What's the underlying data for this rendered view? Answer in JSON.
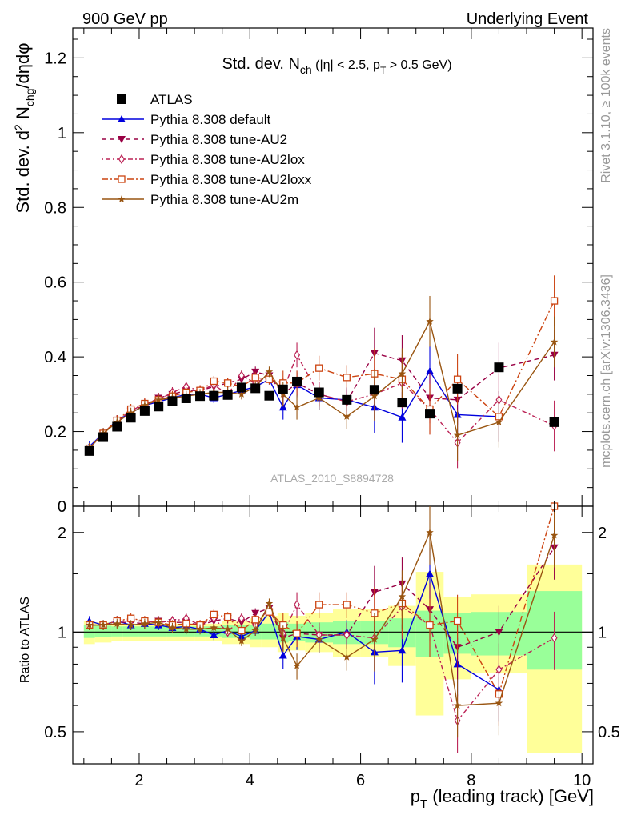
{
  "header": {
    "left": "900 GeV pp",
    "right": "Underlying Event"
  },
  "side_labels": {
    "rivet": "Rivet 3.1.10, ≥ 100k events",
    "mcplots": "mcplots.cern.ch [arXiv:1306.3436]"
  },
  "chart_data": [
    {
      "type": "scatter",
      "title": "Std. dev. N_ch (|η| < 2.5, p_T > 0.5 GeV)",
      "title_parts": {
        "pre": "Std. dev. N",
        "sub1": "ch",
        "mid": " (|η| < 2.5, p",
        "sub2": "T",
        "post": " > 0.5 GeV)"
      },
      "ylabel": "Std. dev. d² N_chg/dηdφ",
      "ylabel_parts": {
        "pre": "Std. dev. d",
        "sup": "2",
        "mid": " N",
        "sub": "chg",
        "post": "/dηdφ"
      },
      "analysis_label": "ATLAS_2010_S8894728",
      "xlim": [
        0.8,
        10.2
      ],
      "ylim": [
        0,
        1.28
      ],
      "yticks": [
        0,
        0.2,
        0.4,
        0.6,
        0.8,
        1,
        1.2
      ],
      "ytick_labels": [
        "0",
        "0.2",
        "0.4",
        "0.6",
        "0.8",
        "1",
        "1.2"
      ],
      "legend_position": "top-left",
      "data": {
        "x": [
          1.1,
          1.35,
          1.6,
          1.85,
          2.1,
          2.35,
          2.6,
          2.85,
          3.1,
          3.35,
          3.6,
          3.85,
          4.1,
          4.35,
          4.6,
          4.85,
          5.25,
          5.75,
          6.25,
          6.75,
          7.25,
          7.75,
          8.5,
          9.5
        ],
        "y": [
          0.148,
          0.185,
          0.213,
          0.237,
          0.255,
          0.267,
          0.282,
          0.289,
          0.295,
          0.296,
          0.298,
          0.318,
          0.316,
          0.296,
          0.313,
          0.334,
          0.305,
          0.285,
          0.312,
          0.278,
          0.248,
          0.315,
          0.372,
          0.225
        ]
      },
      "series": [
        {
          "name": "ATLAS",
          "color": "#000000",
          "marker": "square",
          "x": [
            1.1,
            1.35,
            1.6,
            1.85,
            2.1,
            2.35,
            2.6,
            2.85,
            3.1,
            3.35,
            3.6,
            3.85,
            4.1,
            4.35,
            4.6,
            4.85,
            5.25,
            5.75,
            6.25,
            6.75,
            7.25,
            7.75,
            8.5,
            9.5
          ],
          "values": [
            0.148,
            0.185,
            0.213,
            0.237,
            0.255,
            0.267,
            0.282,
            0.289,
            0.295,
            0.296,
            0.298,
            0.318,
            0.316,
            0.296,
            0.313,
            0.334,
            0.305,
            0.285,
            0.312,
            0.278,
            0.248,
            0.315,
            0.372,
            0.225
          ]
        },
        {
          "name": "Pythia 8.308 default",
          "color": "#0000dd",
          "marker": "triangle-up",
          "line": "solid",
          "x": [
            1.1,
            1.35,
            1.6,
            1.85,
            2.1,
            2.35,
            2.6,
            2.85,
            3.1,
            3.35,
            3.6,
            3.85,
            4.1,
            4.35,
            4.6,
            4.85,
            5.25,
            5.75,
            6.25,
            6.75,
            7.25,
            7.75,
            8.5
          ],
          "values": [
            0.16,
            0.195,
            0.23,
            0.25,
            0.27,
            0.28,
            0.29,
            0.3,
            0.3,
            0.29,
            0.3,
            0.31,
            0.32,
            0.34,
            0.265,
            0.325,
            0.29,
            0.285,
            0.265,
            0.238,
            0.362,
            0.245,
            0.24
          ]
        },
        {
          "name": "Pythia 8.308 tune-AU2",
          "color": "#990044",
          "marker": "triangle-down",
          "line": "dashed",
          "x": [
            1.1,
            1.35,
            1.6,
            1.85,
            2.1,
            2.35,
            2.6,
            2.85,
            3.1,
            3.35,
            3.6,
            3.85,
            4.1,
            4.35,
            4.6,
            4.85,
            5.25,
            5.75,
            6.25,
            6.75,
            7.25,
            7.75,
            8.5,
            9.5
          ],
          "values": [
            0.155,
            0.195,
            0.228,
            0.255,
            0.27,
            0.29,
            0.3,
            0.31,
            0.31,
            0.32,
            0.33,
            0.34,
            0.36,
            0.35,
            0.3,
            0.33,
            0.3,
            0.28,
            0.41,
            0.39,
            0.29,
            0.285,
            0.37,
            0.405
          ]
        },
        {
          "name": "Pythia 8.308 tune-AU2lox",
          "color": "#bb2255",
          "marker": "diamond-open",
          "line": "dotdash",
          "x": [
            1.1,
            1.35,
            1.6,
            1.85,
            2.1,
            2.35,
            2.6,
            2.85,
            3.1,
            3.35,
            3.6,
            3.85,
            4.1,
            4.35,
            4.6,
            4.85,
            5.25,
            5.75,
            6.25,
            6.75,
            7.25,
            7.75,
            8.5,
            9.5
          ],
          "values": [
            0.155,
            0.195,
            0.23,
            0.255,
            0.275,
            0.285,
            0.305,
            0.32,
            0.31,
            0.325,
            0.3,
            0.35,
            0.33,
            0.35,
            0.31,
            0.405,
            0.3,
            0.28,
            0.3,
            0.33,
            0.26,
            0.17,
            0.285,
            0.215
          ]
        },
        {
          "name": "Pythia 8.308 tune-AU2loxx",
          "color": "#cc4411",
          "marker": "square-open",
          "line": "dashdot",
          "x": [
            1.1,
            1.35,
            1.6,
            1.85,
            2.1,
            2.35,
            2.6,
            2.85,
            3.1,
            3.35,
            3.6,
            3.85,
            4.1,
            4.35,
            4.6,
            4.85,
            5.25,
            5.75,
            6.25,
            6.75,
            7.25,
            7.75,
            8.5,
            9.5
          ],
          "values": [
            0.155,
            0.195,
            0.23,
            0.26,
            0.275,
            0.285,
            0.295,
            0.305,
            0.31,
            0.335,
            0.33,
            0.32,
            0.345,
            0.34,
            0.33,
            0.33,
            0.37,
            0.345,
            0.355,
            0.34,
            0.26,
            0.34,
            0.24,
            0.55
          ]
        },
        {
          "name": "Pythia 8.308 tune-AU2m",
          "color": "#995511",
          "marker": "star",
          "line": "solid",
          "x": [
            1.1,
            1.35,
            1.6,
            1.85,
            2.1,
            2.35,
            2.6,
            2.85,
            3.1,
            3.35,
            3.6,
            3.85,
            4.1,
            4.35,
            4.6,
            4.85,
            5.25,
            5.75,
            6.25,
            6.75,
            7.25,
            7.75,
            8.5,
            9.5
          ],
          "values": [
            0.155,
            0.195,
            0.225,
            0.25,
            0.27,
            0.285,
            0.29,
            0.295,
            0.3,
            0.305,
            0.305,
            0.3,
            0.32,
            0.36,
            0.3,
            0.265,
            0.29,
            0.24,
            0.295,
            0.355,
            0.495,
            0.19,
            0.225,
            0.44
          ]
        }
      ]
    },
    {
      "type": "scatter",
      "ylabel": "Ratio to ATLAS",
      "xlabel": "p_T (leading track) [GeV]",
      "xlabel_parts": {
        "pre": "p",
        "sub": "T",
        "post": " (leading track) [GeV]"
      },
      "xlim": [
        0.8,
        10.2
      ],
      "ylim_log": [
        0.4,
        2.4
      ],
      "log_scale_y": true,
      "xticks": [
        2,
        4,
        6,
        8,
        10
      ],
      "xtick_labels": [
        "2",
        "4",
        "6",
        "8",
        "10"
      ],
      "yticks": [
        0.5,
        1,
        2
      ],
      "ytick_labels": [
        "0.5",
        "1",
        "2"
      ],
      "reference_line": 1,
      "band_edges": [
        1.0,
        1.2,
        1.5,
        1.7,
        2.0,
        2.2,
        2.5,
        2.7,
        3.0,
        3.2,
        3.5,
        3.7,
        4.0,
        4.2,
        4.5,
        4.7,
        5.0,
        5.5,
        6.0,
        6.5,
        7.0,
        7.5,
        8.0,
        9.0,
        10.0
      ],
      "band_68": [
        [
          0.96,
          1.05
        ],
        [
          0.965,
          1.045
        ],
        [
          0.97,
          1.04
        ],
        [
          0.97,
          1.04
        ],
        [
          0.97,
          1.04
        ],
        [
          0.97,
          1.04
        ],
        [
          0.97,
          1.04
        ],
        [
          0.97,
          1.04
        ],
        [
          0.97,
          1.04
        ],
        [
          0.97,
          1.04
        ],
        [
          0.96,
          1.05
        ],
        [
          0.96,
          1.05
        ],
        [
          0.95,
          1.05
        ],
        [
          0.95,
          1.06
        ],
        [
          0.93,
          1.07
        ],
        [
          0.94,
          1.06
        ],
        [
          0.93,
          1.07
        ],
        [
          0.92,
          1.08
        ],
        [
          0.92,
          1.08
        ],
        [
          0.9,
          1.1
        ],
        [
          0.84,
          1.16
        ],
        [
          0.86,
          1.14
        ],
        [
          0.85,
          1.15
        ],
        [
          0.77,
          1.33
        ]
      ],
      "band_95": [
        [
          0.92,
          1.08
        ],
        [
          0.93,
          1.07
        ],
        [
          0.94,
          1.06
        ],
        [
          0.94,
          1.06
        ],
        [
          0.94,
          1.06
        ],
        [
          0.94,
          1.06
        ],
        [
          0.94,
          1.06
        ],
        [
          0.94,
          1.06
        ],
        [
          0.94,
          1.06
        ],
        [
          0.94,
          1.06
        ],
        [
          0.92,
          1.08
        ],
        [
          0.92,
          1.08
        ],
        [
          0.9,
          1.1
        ],
        [
          0.9,
          1.12
        ],
        [
          0.87,
          1.14
        ],
        [
          0.88,
          1.12
        ],
        [
          0.87,
          1.14
        ],
        [
          0.84,
          1.17
        ],
        [
          0.84,
          1.17
        ],
        [
          0.79,
          1.2
        ],
        [
          0.56,
          1.52
        ],
        [
          0.72,
          1.28
        ],
        [
          0.75,
          1.3
        ],
        [
          0.43,
          1.6
        ]
      ],
      "series": [
        {
          "name": "Pythia 8.308 default",
          "x": [
            1.1,
            1.35,
            1.6,
            1.85,
            2.1,
            2.35,
            2.6,
            2.85,
            3.1,
            3.35,
            3.6,
            3.85,
            4.1,
            4.35,
            4.6,
            4.85,
            5.25,
            5.75,
            6.25,
            6.75,
            7.25,
            7.75,
            8.5
          ],
          "values": [
            1.08,
            1.05,
            1.08,
            1.05,
            1.06,
            1.05,
            1.03,
            1.04,
            1.02,
            0.98,
            1.01,
            0.97,
            1.01,
            1.15,
            0.85,
            0.97,
            0.95,
            1.0,
            0.87,
            0.88,
            1.5,
            0.8,
            0.67
          ]
        },
        {
          "name": "Pythia 8.308 tune-AU2",
          "x": [
            1.1,
            1.35,
            1.6,
            1.85,
            2.1,
            2.35,
            2.6,
            2.85,
            3.1,
            3.35,
            3.6,
            3.85,
            4.1,
            4.35,
            4.6,
            4.85,
            5.25,
            5.75,
            6.25,
            6.75,
            7.25,
            7.75,
            8.5,
            9.5
          ],
          "values": [
            1.05,
            1.05,
            1.07,
            1.07,
            1.06,
            1.08,
            1.07,
            1.07,
            1.05,
            1.08,
            1.1,
            1.07,
            1.14,
            1.18,
            0.96,
            0.99,
            0.98,
            0.98,
            1.32,
            1.4,
            1.17,
            0.9,
            1.0,
            1.8
          ]
        },
        {
          "name": "Pythia 8.308 tune-AU2lox",
          "x": [
            1.1,
            1.35,
            1.6,
            1.85,
            2.1,
            2.35,
            2.6,
            2.85,
            3.1,
            3.35,
            3.6,
            3.85,
            4.1,
            4.35,
            4.6,
            4.85,
            5.25,
            5.75,
            6.25,
            6.75,
            7.25,
            7.75,
            8.5,
            9.5
          ],
          "values": [
            1.05,
            1.05,
            1.08,
            1.08,
            1.08,
            1.07,
            1.08,
            1.1,
            1.05,
            1.1,
            1.0,
            1.1,
            1.05,
            1.18,
            0.99,
            1.21,
            0.98,
            0.98,
            0.96,
            1.19,
            1.05,
            0.54,
            0.77,
            0.96
          ]
        },
        {
          "name": "Pythia 8.308 tune-AU2loxx",
          "x": [
            1.1,
            1.35,
            1.6,
            1.85,
            2.1,
            2.35,
            2.6,
            2.85,
            3.1,
            3.35,
            3.6,
            3.85,
            4.1,
            4.35,
            4.6,
            4.85,
            5.25,
            5.75,
            6.25,
            6.75,
            7.25,
            7.75,
            8.5,
            9.5
          ],
          "values": [
            1.05,
            1.05,
            1.08,
            1.1,
            1.08,
            1.07,
            1.05,
            1.06,
            1.05,
            1.13,
            1.11,
            1.01,
            1.09,
            1.15,
            1.05,
            0.99,
            1.21,
            1.21,
            1.14,
            1.22,
            1.05,
            1.08,
            0.65,
            2.44
          ]
        },
        {
          "name": "Pythia 8.308 tune-AU2m",
          "x": [
            1.1,
            1.35,
            1.6,
            1.85,
            2.1,
            2.35,
            2.6,
            2.85,
            3.1,
            3.35,
            3.6,
            3.85,
            4.1,
            4.35,
            4.6,
            4.85,
            5.25,
            5.75,
            6.25,
            6.75,
            7.25,
            7.75,
            8.5,
            9.5
          ],
          "values": [
            1.05,
            1.05,
            1.06,
            1.05,
            1.06,
            1.07,
            1.03,
            1.02,
            1.02,
            1.03,
            1.02,
            0.94,
            1.01,
            1.22,
            0.96,
            0.79,
            0.95,
            0.84,
            0.95,
            1.28,
            2.0,
            0.6,
            0.61,
            1.96
          ]
        }
      ]
    }
  ]
}
